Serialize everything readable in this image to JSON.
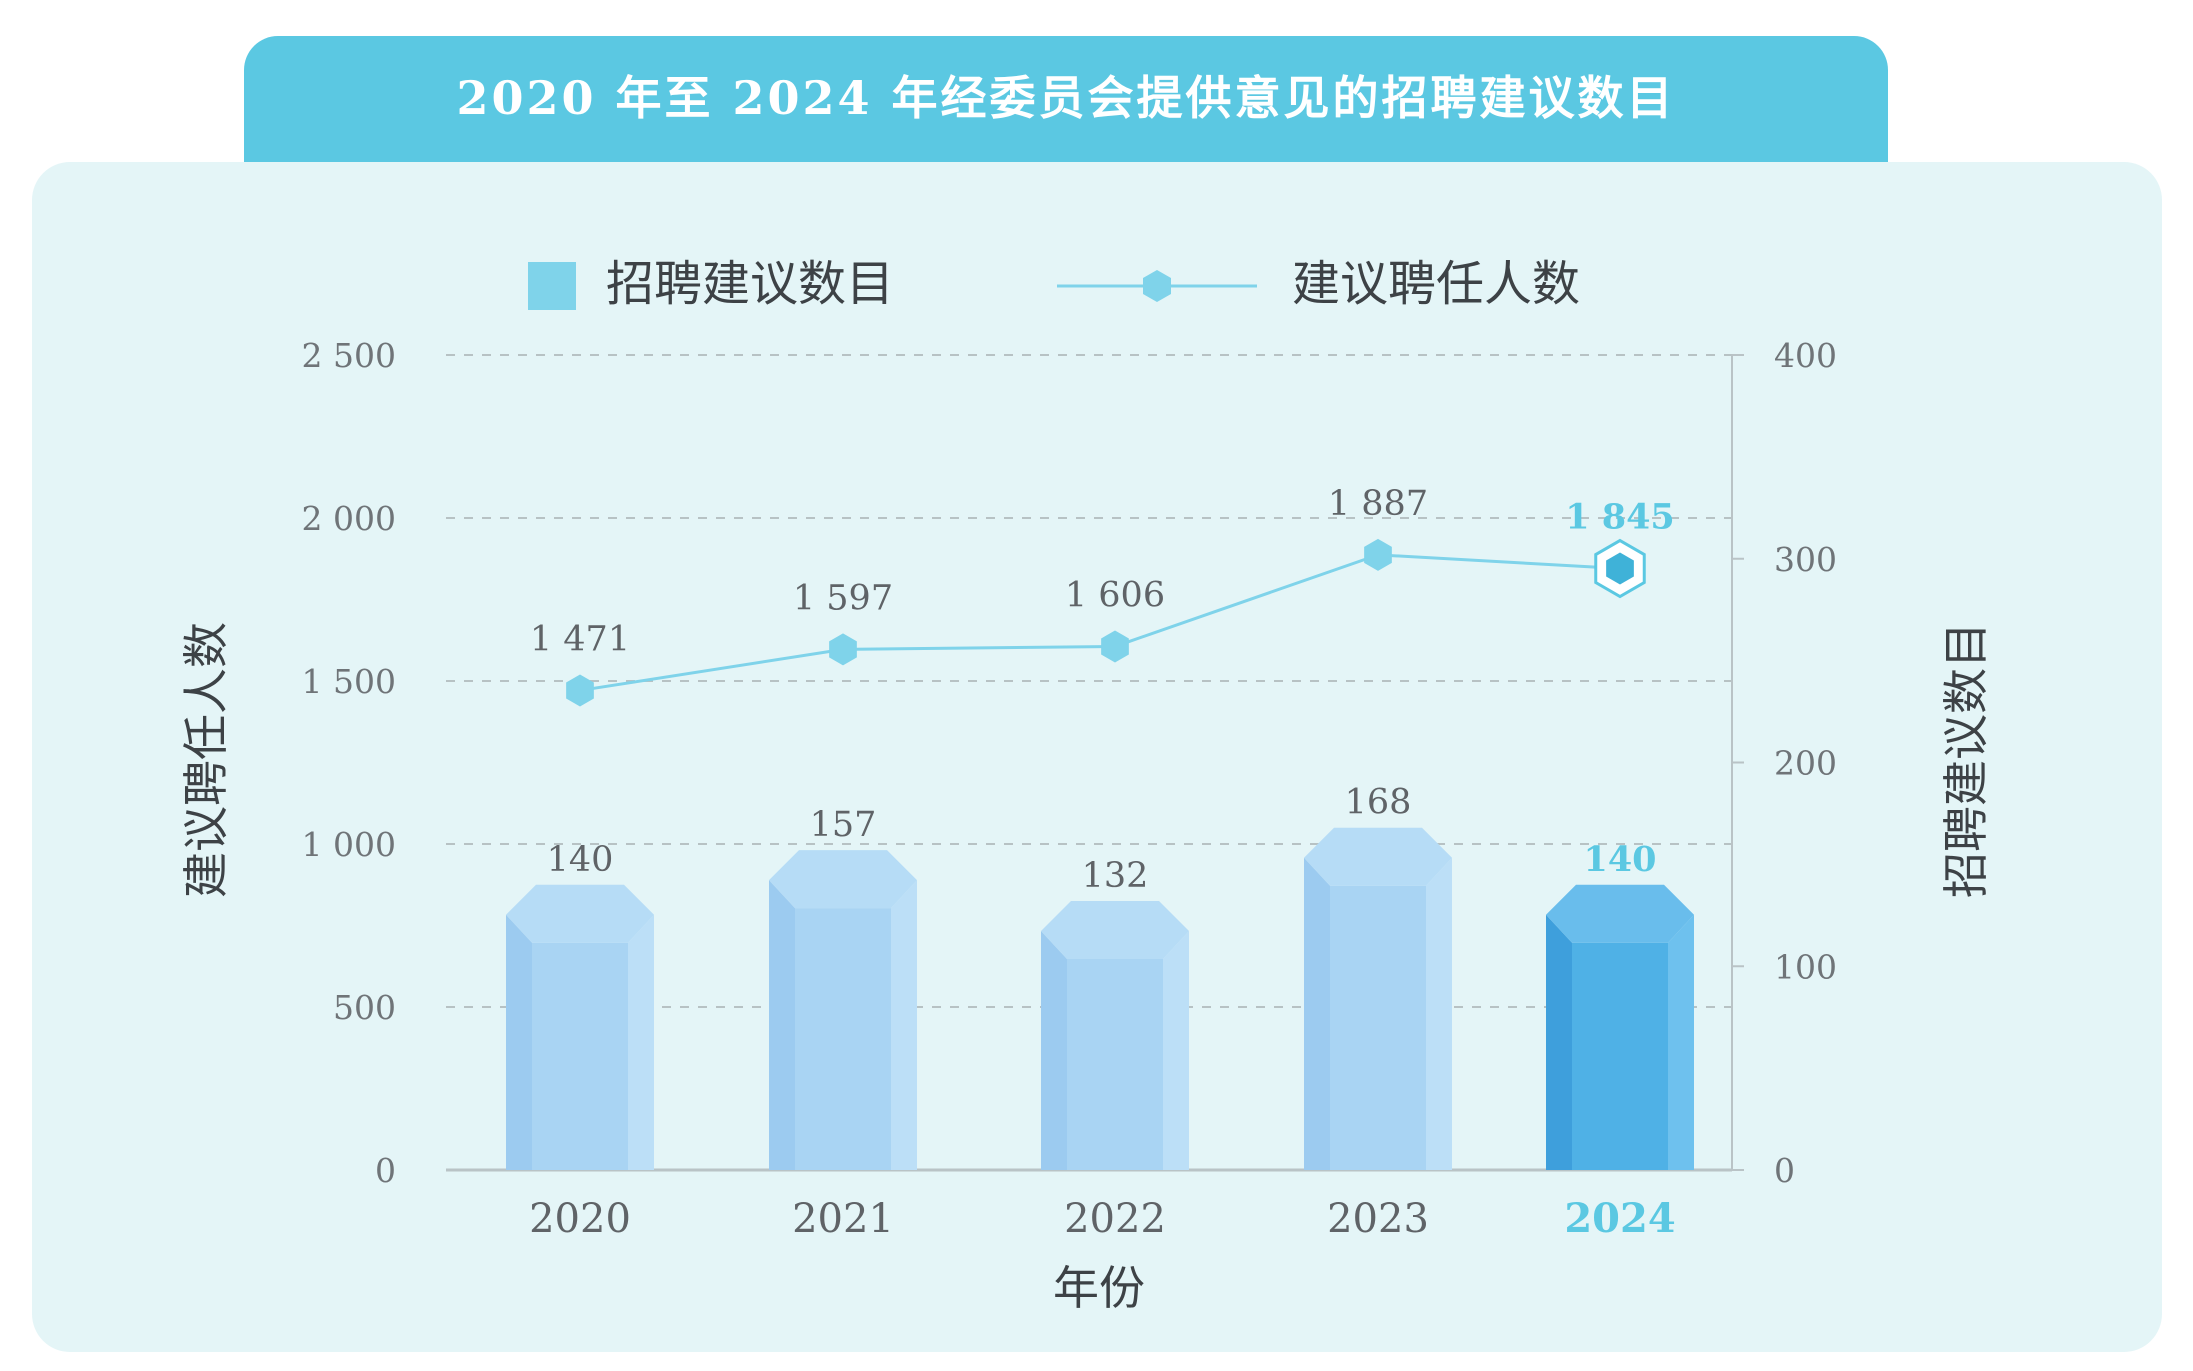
{
  "title": "2020 年至 2024 年经委员会提供意见的招聘建议数目",
  "chart_data": {
    "type": "bar",
    "categories": [
      "2020",
      "2021",
      "2022",
      "2023",
      "2024"
    ],
    "highlight_category": "2024",
    "series": [
      {
        "name": "招聘建议数目",
        "type": "bar",
        "axis": "right",
        "values": [
          140,
          157,
          132,
          168,
          140
        ],
        "labels": [
          "140",
          "157",
          "132",
          "168",
          "140"
        ],
        "color": "#a7d3f2",
        "highlight_color": "#4fb1e6"
      },
      {
        "name": "建议聘任人数",
        "type": "line",
        "axis": "left",
        "values": [
          1471,
          1597,
          1606,
          1887,
          1845
        ],
        "labels": [
          "1 471",
          "1 597",
          "1 606",
          "1 887",
          "1 845"
        ],
        "color": "#7fd3ea"
      }
    ],
    "left_axis": {
      "label": "建议聘任人数",
      "ylim": [
        0,
        2500
      ],
      "ticks": [
        0,
        500,
        1000,
        1500,
        2000,
        2500
      ],
      "tick_labels": [
        "0",
        "500",
        "1 000",
        "1 500",
        "2 000",
        "2 500"
      ]
    },
    "right_axis": {
      "label": "招聘建议数目",
      "ylim": [
        0,
        400
      ],
      "ticks": [
        0,
        100,
        200,
        300,
        400
      ],
      "tick_labels": [
        "0",
        "100",
        "200",
        "300",
        "400"
      ]
    },
    "xlabel": "年份",
    "grid": "dashed horizontal",
    "legend_position": "top"
  }
}
